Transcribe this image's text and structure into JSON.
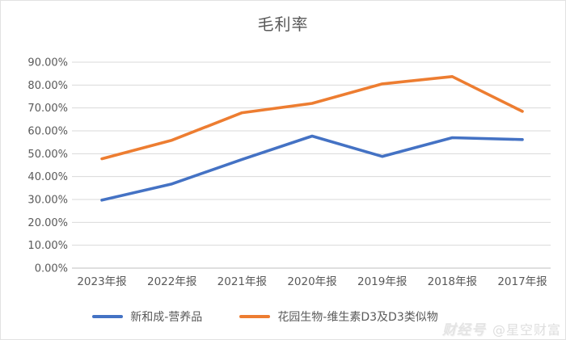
{
  "chart_data": {
    "type": "line",
    "title": "毛利率",
    "categories": [
      "2023年报",
      "2022年报",
      "2021年报",
      "2020年报",
      "2019年报",
      "2018年报",
      "2017年报"
    ],
    "series": [
      {
        "name": "新和成-营养品",
        "color": "#4472C4",
        "values": [
          29.7,
          36.8,
          47.5,
          57.7,
          48.8,
          57.0,
          56.2
        ]
      },
      {
        "name": "花园生物-维生素D3及D3类似物",
        "color": "#ED7D31",
        "values": [
          47.8,
          55.9,
          67.9,
          72.0,
          80.5,
          83.7,
          68.5
        ]
      }
    ],
    "xlabel": "",
    "ylabel": "",
    "ylim": [
      0,
      90
    ],
    "y_tick_labels": [
      "0.00%",
      "10.00%",
      "20.00%",
      "30.00%",
      "40.00%",
      "50.00%",
      "60.00%",
      "70.00%",
      "80.00%",
      "90.00%"
    ],
    "grid": true,
    "legend_position": "bottom",
    "text_color": "#595959",
    "grid_color": "#D9D9D9",
    "axis_color": "#BFBFBF"
  },
  "watermark": {
    "logo": "财经号",
    "handle": "@星空财富"
  }
}
